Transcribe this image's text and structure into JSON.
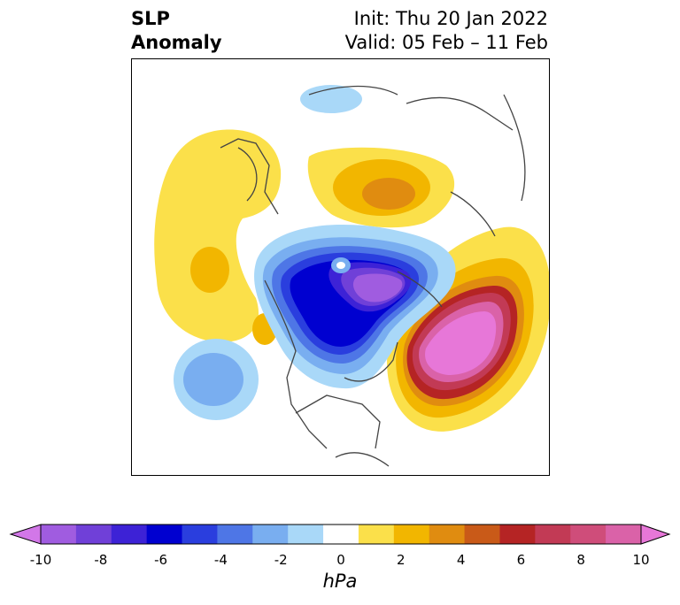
{
  "header": {
    "title_line1": "SLP",
    "title_line2": "Anomaly",
    "init_text": "Init: Thu 20 Jan 2022",
    "valid_text": "Valid: 05 Feb – 11 Feb"
  },
  "colorbar": {
    "unit": "hPa",
    "ticks": [
      "-10",
      "-8",
      "-6",
      "-4",
      "-2",
      "0",
      "2",
      "4",
      "6",
      "8",
      "10"
    ],
    "colors": [
      "#d277e8",
      "#a05ce0",
      "#7040d8",
      "#3d22d6",
      "#0000d0",
      "#2a3ede",
      "#4e76e6",
      "#79aef0",
      "#a9d8f8",
      "#ffffff",
      "#fbe04a",
      "#f2b600",
      "#e08c10",
      "#c95a18",
      "#b52424",
      "#c23a55",
      "#cf4d7a",
      "#da62a8",
      "#e777d8"
    ]
  },
  "map": {
    "features": [
      "negative-anomaly-arctic",
      "positive-anomaly-atlantic",
      "positive-anomaly-siberia",
      "positive-anomaly-pacific",
      "negative-anomaly-north-pacific"
    ]
  }
}
